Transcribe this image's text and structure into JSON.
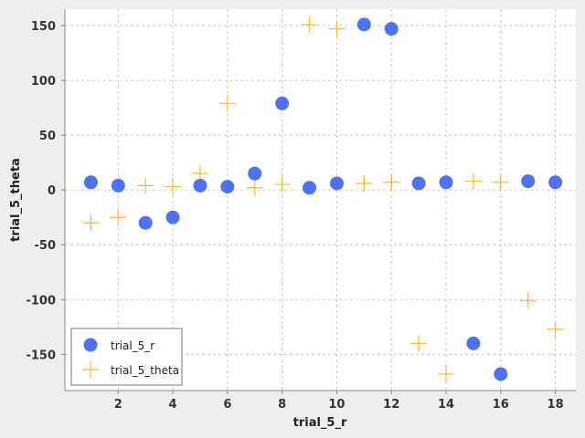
{
  "chart_data": {
    "type": "scatter",
    "xlabel": "trial_5_r",
    "ylabel": "trial_5_theta",
    "xlim": [
      0.05,
      18.75
    ],
    "ylim": [
      -183,
      165
    ],
    "x_ticks": [
      2,
      4,
      6,
      8,
      10,
      12,
      14,
      16,
      18
    ],
    "y_ticks": [
      -150,
      -100,
      -50,
      0,
      50,
      100,
      150
    ],
    "grid": true,
    "legend_position": "bottom-left",
    "series": [
      {
        "name": "trial_5_r",
        "marker": "circle",
        "color": "#4f73f0",
        "points": [
          [
            1,
            7
          ],
          [
            2,
            4
          ],
          [
            3,
            -30
          ],
          [
            4,
            -25
          ],
          [
            5,
            4
          ],
          [
            6,
            3
          ],
          [
            7,
            15
          ],
          [
            8,
            79
          ],
          [
            9,
            2
          ],
          [
            10,
            6
          ],
          [
            11,
            151
          ],
          [
            12,
            147
          ],
          [
            13,
            6
          ],
          [
            14,
            7
          ],
          [
            15,
            -140
          ],
          [
            16,
            -168
          ],
          [
            17,
            8
          ],
          [
            18,
            7
          ]
        ]
      },
      {
        "name": "trial_5_theta",
        "marker": "plus",
        "color": "#ffb833",
        "points": [
          [
            1,
            -30
          ],
          [
            2,
            -25
          ],
          [
            3,
            4
          ],
          [
            4,
            3
          ],
          [
            5,
            15
          ],
          [
            6,
            79
          ],
          [
            7,
            2
          ],
          [
            8,
            5
          ],
          [
            9,
            151
          ],
          [
            10,
            147
          ],
          [
            11,
            6
          ],
          [
            12,
            7
          ],
          [
            13,
            -140
          ],
          [
            14,
            -168
          ],
          [
            15,
            8
          ],
          [
            16,
            7
          ],
          [
            17,
            -101
          ],
          [
            18,
            -127
          ]
        ]
      }
    ]
  }
}
